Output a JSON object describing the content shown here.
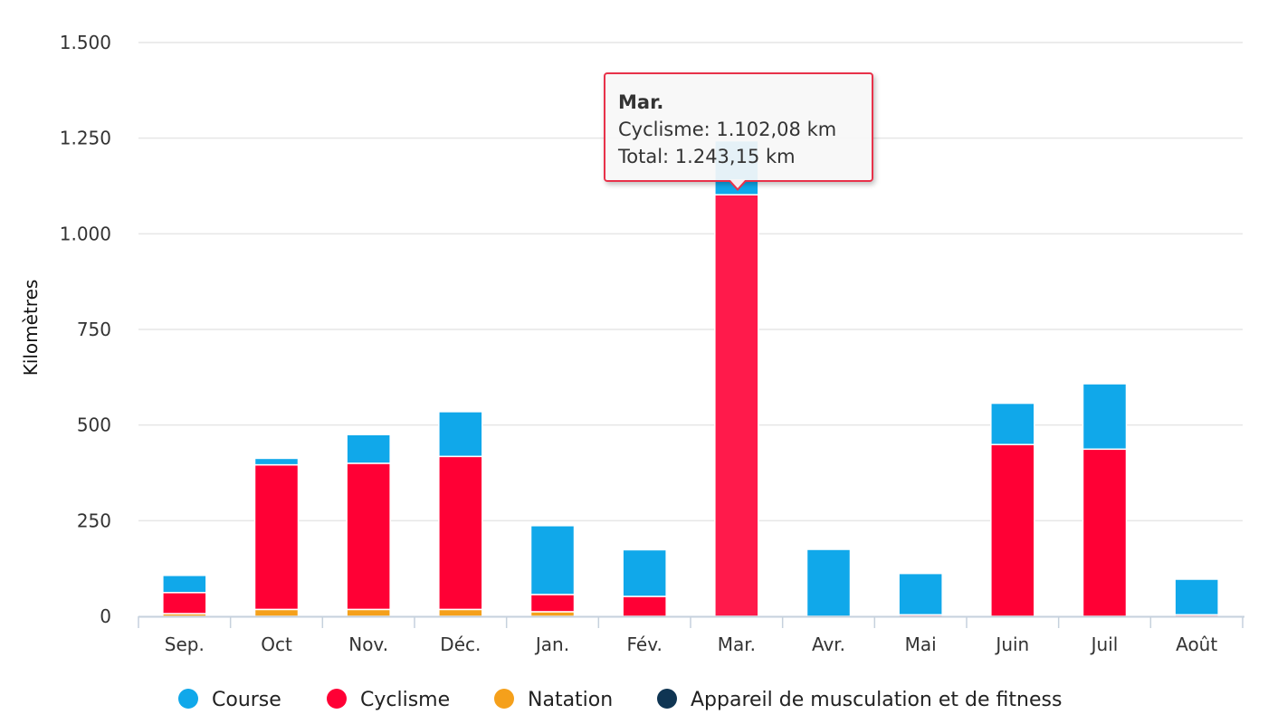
{
  "chart_data": {
    "type": "bar",
    "stacked": true,
    "title": "",
    "xlabel": "",
    "ylabel": "Kilomètres",
    "ylim": [
      0,
      1500
    ],
    "yticks": [
      0,
      250,
      500,
      750,
      1000,
      1250,
      1500
    ],
    "ytick_labels": [
      "0",
      "250",
      "500",
      "750",
      "1.000",
      "1.250",
      "1.500"
    ],
    "grid": true,
    "legend_position": "bottom",
    "categories": [
      "Sep.",
      "Oct",
      "Nov.",
      "Déc.",
      "Jan.",
      "Fév.",
      "Mar.",
      "Avr.",
      "Mai",
      "Juin",
      "Juil",
      "Août"
    ],
    "series": [
      {
        "name": "Appareil de musculation et de fitness",
        "color": "#0f3553",
        "values": [
          0,
          0,
          0,
          0,
          0,
          0,
          0,
          0,
          0,
          0,
          0,
          0
        ]
      },
      {
        "name": "Natation",
        "color": "#f5a01b",
        "values": [
          7,
          18,
          18,
          18,
          12,
          0,
          0,
          0,
          0,
          0,
          0,
          0
        ]
      },
      {
        "name": "Cyclisme",
        "color": "#ff0035",
        "values": [
          55,
          378,
          382,
          400,
          45,
          52,
          1102.08,
          0,
          4,
          449,
          437,
          4
        ]
      },
      {
        "name": "Course",
        "color": "#10a8ea",
        "values": [
          45,
          17,
          75,
          117,
          180,
          122,
          141.07,
          175,
          108,
          108,
          171,
          93
        ]
      }
    ],
    "legend_order": [
      "Course",
      "Cyclisme",
      "Natation",
      "Appareil de musculation et de fitness"
    ],
    "highlighted_category": "Mar.",
    "highlight_color": "#ff1a4b"
  },
  "tooltip": {
    "title": "Mar.",
    "line1": "Cyclisme: 1.102,08 km",
    "line2": "Total: 1.243,15 km"
  }
}
